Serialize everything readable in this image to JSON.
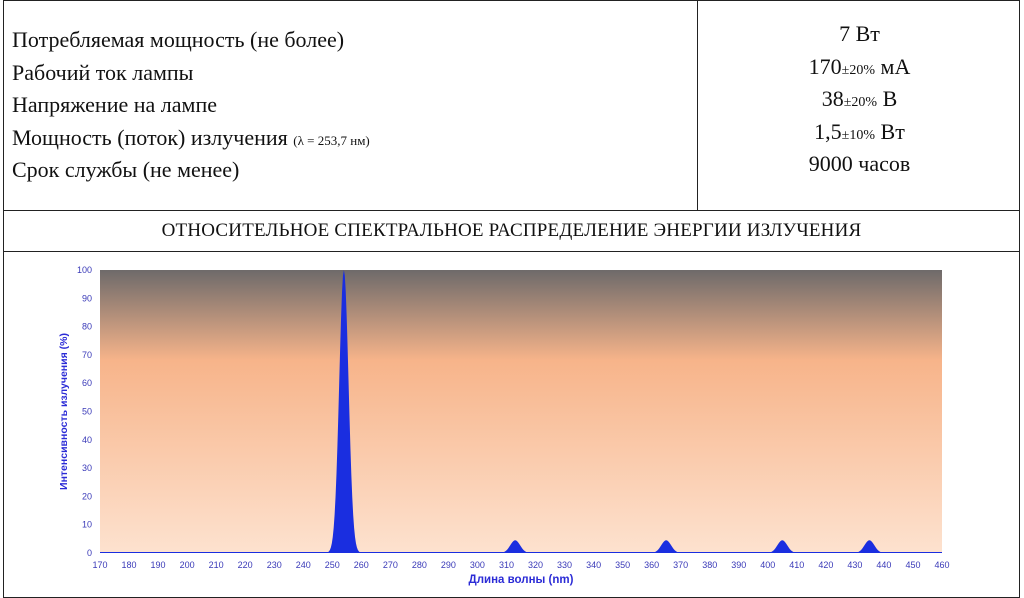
{
  "specs": {
    "rows": [
      {
        "label": "Потребляемая мощность (не более)",
        "value": "7 Вт"
      },
      {
        "label": "Рабочий ток лампы",
        "value_main": "170",
        "tolerance": "±20%",
        "value_unit": " мА"
      },
      {
        "label": "Напряжение на лампе",
        "value_main": "38",
        "tolerance": "±20%",
        "value_unit": " В"
      },
      {
        "label": "Мощность (поток) излучения",
        "label_note": "(λ = 253,7 нм)",
        "value_main": "1,5",
        "tolerance": "±10%",
        "value_unit": " Вт"
      },
      {
        "label": "Срок службы (не менее)",
        "value": "9000 часов"
      }
    ]
  },
  "section_title": "ОТНОСИТЕЛЬНОЕ СПЕКТРАЛЬНОЕ РАСПРЕДЕЛЕНИЕ ЭНЕРГИИ ИЗЛУЧЕНИЯ",
  "colors": {
    "series": "#1a2ee0",
    "axis_label": "#2b2bd6",
    "tick_label": "#3a3ab8",
    "plot_top": "#6e6a6a",
    "plot_mid": "#f7b48a",
    "plot_bottom": "#fde2cf"
  },
  "chart_data": {
    "type": "area",
    "xlabel": "Длина волны (nm)",
    "ylabel": "Интенсивность излучения (%)",
    "xlim": [
      170,
      460
    ],
    "ylim": [
      0,
      100
    ],
    "xticks": [
      170,
      180,
      190,
      200,
      210,
      220,
      230,
      240,
      250,
      260,
      270,
      280,
      290,
      300,
      310,
      320,
      330,
      340,
      350,
      360,
      370,
      380,
      390,
      400,
      410,
      420,
      430,
      440,
      450,
      460
    ],
    "yticks": [
      0,
      10,
      20,
      30,
      40,
      50,
      60,
      70,
      80,
      90,
      100
    ],
    "grid": false,
    "series": [
      {
        "peaks": [
          {
            "x": 254,
            "y": 100
          },
          {
            "x": 313,
            "y": 4.5
          },
          {
            "x": 365,
            "y": 4.5
          },
          {
            "x": 405,
            "y": 4.5
          },
          {
            "x": 435,
            "y": 4.5
          }
        ]
      }
    ]
  }
}
